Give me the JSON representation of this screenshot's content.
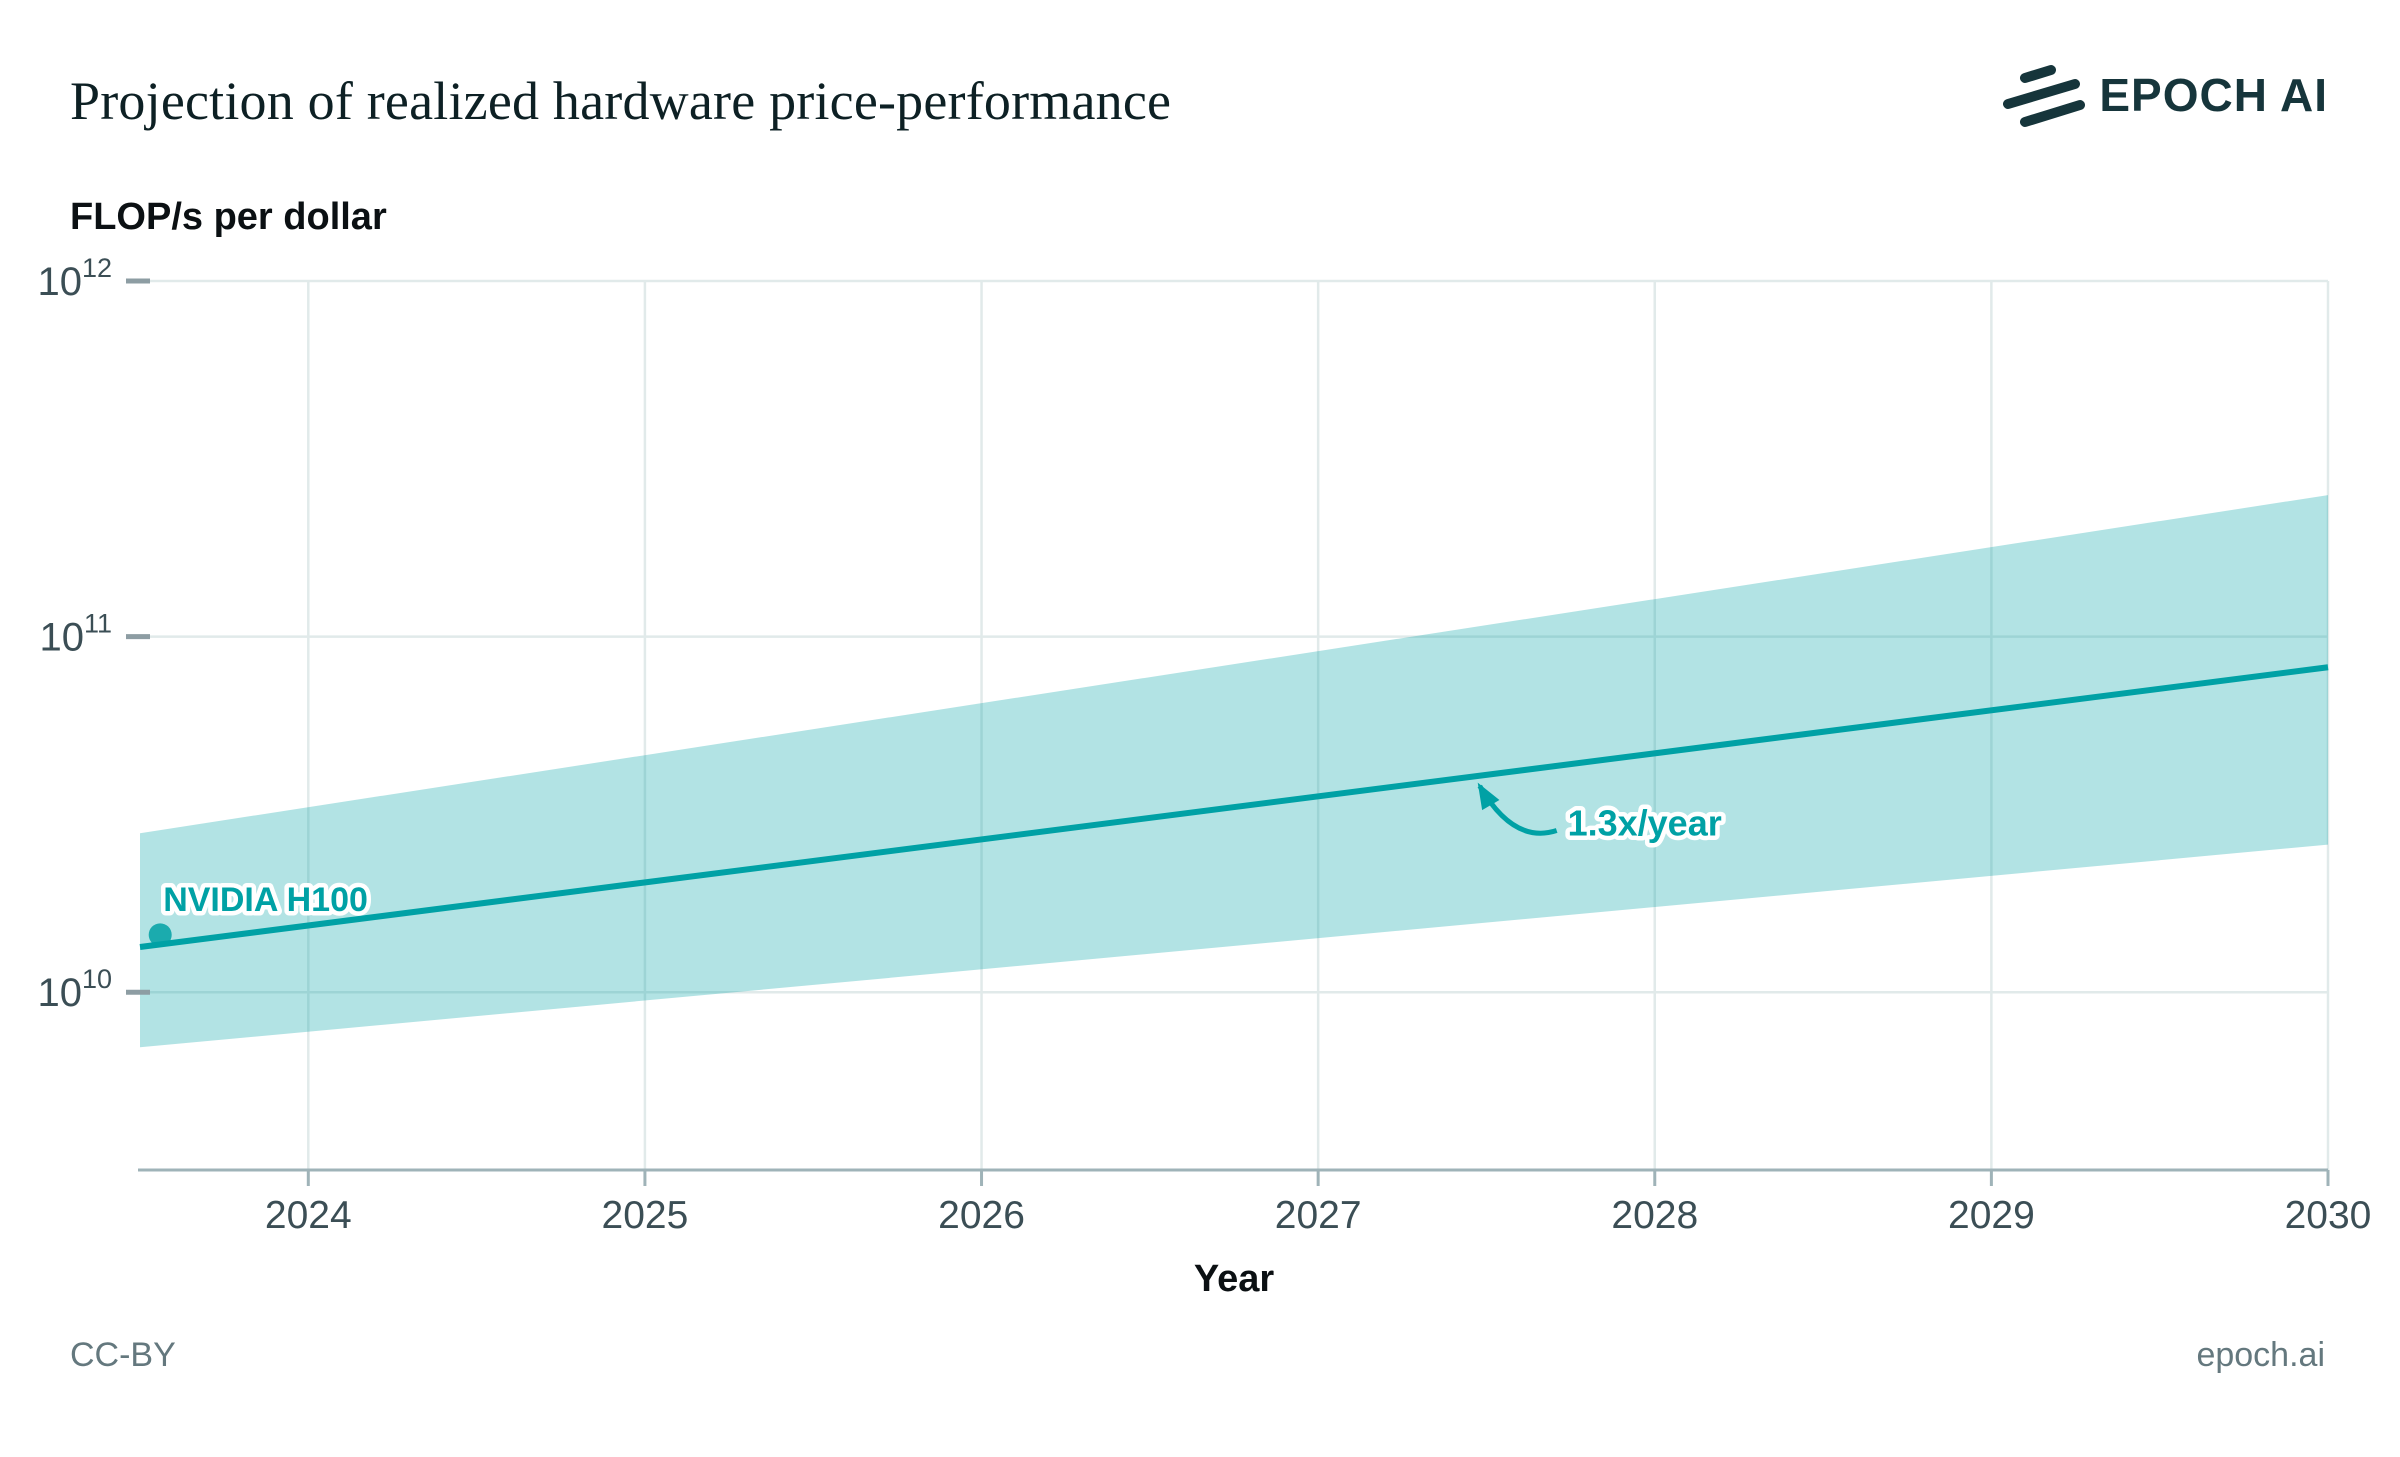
{
  "header": {
    "title": "Projection of realized hardware price-performance",
    "brand": "EPOCH AI"
  },
  "footer": {
    "license": "CC-BY",
    "site": "epoch.ai"
  },
  "colors": {
    "accent": "#00a1a5",
    "band_opacity": 0.3,
    "grid": "#e1eaea",
    "axis": "#9fb3b8",
    "tick_dash": "#8d9da3",
    "tick_label": "#3b4e55",
    "ink": "#0d2024",
    "logo": "#16353b",
    "halo": "#ffffff"
  },
  "chart_data": {
    "type": "line",
    "title": "Projection of realized hardware price-performance",
    "xlabel": "Year",
    "ylabel": "FLOP/s per dollar",
    "y_scale": "log10",
    "x_range": [
      2023.5,
      2030
    ],
    "y_log10_range": [
      9.5,
      12
    ],
    "grid": true,
    "x_ticks": [
      2024,
      2025,
      2026,
      2027,
      2028,
      2029,
      2030
    ],
    "y_ticks": [
      {
        "exp": 10,
        "base": "10",
        "sup": "10"
      },
      {
        "exp": 11,
        "base": "10",
        "sup": "11"
      },
      {
        "exp": 12,
        "base": "10",
        "sup": "12"
      }
    ],
    "band": {
      "name": "projection-uncertainty-band",
      "x": [
        2023.5,
        2030
      ],
      "top": [
        28000000000.0,
        250000000000.0
      ],
      "bottom": [
        7000000000.0,
        26000000000.0
      ]
    },
    "line": {
      "name": "median-projection",
      "x": [
        2023.5,
        2030
      ],
      "y": [
        13400000000.0,
        82000000000.0
      ]
    },
    "point": {
      "label": "NVIDIA H100",
      "x": 2023.56,
      "y": 14500000000.0
    },
    "annotation": {
      "text": "1.3x/year",
      "text_x": 2027.97,
      "text_y": 30000000000.0,
      "tip_x": 2027.48,
      "tip_y": 38000000000.0
    }
  }
}
